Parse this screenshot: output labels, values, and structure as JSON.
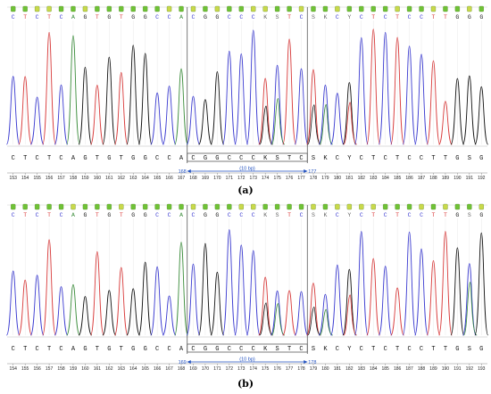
{
  "colors": {
    "A": "#3a8c3a",
    "C": "#3a3ad0",
    "G": "#111111",
    "T": "#d83a3a",
    "other": "#666666",
    "marker": "#1f4fbf",
    "qv_good": "#6fc236",
    "qv_mid": "#c9d94a"
  },
  "panels": [
    {
      "label": "(a)",
      "bases_top": [
        "C",
        "T",
        "C",
        "T",
        "C",
        "A",
        "G",
        "T",
        "G",
        "T",
        "G",
        "G",
        "C",
        "C",
        "A",
        "C",
        "G",
        "G",
        "C",
        "C",
        "C",
        "K",
        "S",
        "T",
        "C",
        "S",
        "K",
        "C",
        "Y",
        "C",
        "T",
        "C",
        "T",
        "C",
        "C",
        "T",
        "T",
        "G",
        "G",
        "G"
      ],
      "bases_bottom": [
        "C",
        "T",
        "C",
        "T",
        "C",
        "A",
        "G",
        "T",
        "G",
        "T",
        "G",
        "G",
        "C",
        "C",
        "A",
        "C",
        "G",
        "G",
        "C",
        "C",
        "C",
        "K",
        "S",
        "T",
        "C",
        "S",
        "K",
        "C",
        "Y",
        "C",
        "T",
        "C",
        "T",
        "C",
        "C",
        "T",
        "T",
        "G",
        "S",
        "G"
      ],
      "positions": [
        "153",
        "154",
        "155",
        "156",
        "157",
        "158",
        "159",
        "160",
        "161",
        "162",
        "163",
        "164",
        "165",
        "166",
        "167",
        "168",
        "169",
        "170",
        "171",
        "172",
        "173",
        "174",
        "175",
        "176",
        "177",
        "178",
        "179",
        "180",
        "181",
        "182",
        "183",
        "184",
        "185",
        "186",
        "187",
        "188",
        "189",
        "190",
        "191",
        "192"
      ],
      "marker_start": "168",
      "marker_end": "177",
      "marker_label": "(10 bp)",
      "selection_start": 15,
      "selection_end": 25
    },
    {
      "label": "(b)",
      "bases_top": [
        "C",
        "T",
        "C",
        "T",
        "C",
        "A",
        "G",
        "T",
        "G",
        "T",
        "G",
        "G",
        "C",
        "C",
        "A",
        "C",
        "G",
        "G",
        "C",
        "C",
        "C",
        "K",
        "S",
        "T",
        "C",
        "S",
        "K",
        "C",
        "Y",
        "C",
        "T",
        "C",
        "T",
        "C",
        "C",
        "T",
        "T",
        "G",
        "S",
        "G"
      ],
      "bases_bottom": [
        "C",
        "T",
        "C",
        "T",
        "C",
        "A",
        "G",
        "T",
        "G",
        "T",
        "G",
        "G",
        "C",
        "C",
        "A",
        "C",
        "G",
        "G",
        "C",
        "C",
        "C",
        "K",
        "S",
        "T",
        "C",
        "S",
        "K",
        "C",
        "Y",
        "C",
        "T",
        "C",
        "T",
        "C",
        "C",
        "T",
        "T",
        "G",
        "S",
        "G"
      ],
      "positions": [
        "154",
        "155",
        "156",
        "157",
        "158",
        "159",
        "160",
        "161",
        "162",
        "163",
        "164",
        "165",
        "166",
        "167",
        "168",
        "169",
        "170",
        "171",
        "172",
        "173",
        "174",
        "175",
        "176",
        "177",
        "178",
        "179",
        "180",
        "181",
        "182",
        "183",
        "184",
        "185",
        "186",
        "187",
        "188",
        "189",
        "190",
        "191",
        "192",
        "193"
      ],
      "marker_start": "169",
      "marker_end": "178",
      "marker_label": "(10 bp)",
      "selection_start": 15,
      "selection_end": 25
    }
  ]
}
